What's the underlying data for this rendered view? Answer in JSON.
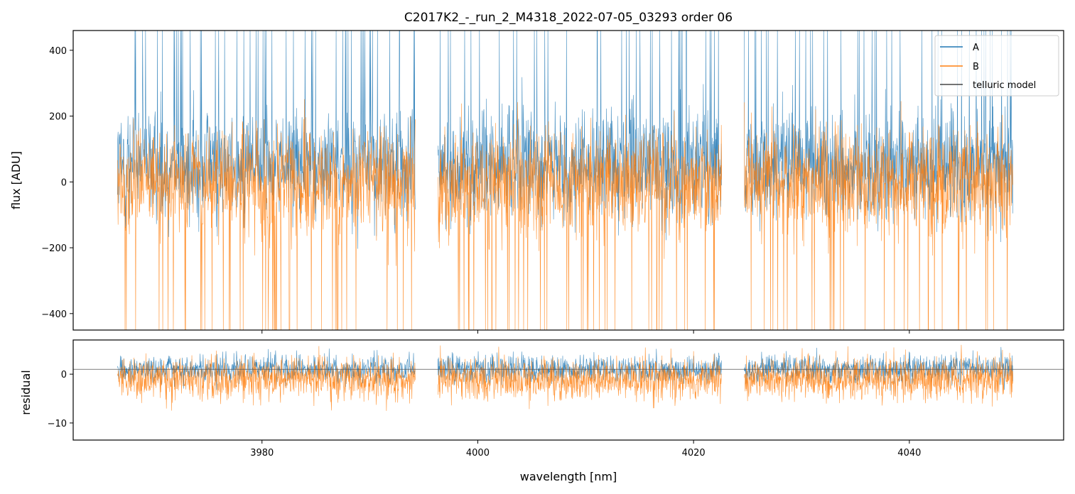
{
  "chart_data": [
    {
      "type": "line",
      "title": "C2017K2_-_run_2_M4318_2022-07-05_03293  order 06",
      "xlabel": "",
      "ylabel": "flux [ADU]",
      "xlim": [
        3962.5,
        4054.3
      ],
      "ylim": [
        -450,
        460
      ],
      "yticks": [
        -400,
        -200,
        0,
        200,
        400
      ],
      "ytick_labels": [
        "−400",
        "−200",
        "0",
        "200",
        "400"
      ],
      "xticks": [
        3980,
        4000,
        4020,
        4040
      ],
      "segments": [
        [
          3966.6,
          3994.2
        ],
        [
          3996.3,
          4022.6
        ],
        [
          4024.7,
          4049.6
        ]
      ],
      "series": [
        {
          "name": "A",
          "color": "#1f77b4",
          "center": 50,
          "spread": 150,
          "spike_max": 460
        },
        {
          "name": "B",
          "color": "#ff7f0e",
          "center": 0,
          "spread": 150,
          "spike_min": -450
        },
        {
          "name": "telluric model",
          "color": "#222222",
          "upper": {
            "x": [
              3966.6,
              3970,
              3975,
              3980,
              3985,
              3990,
              3994.2,
              3996.3,
              4000,
              4003,
              4008,
              4012,
              4016,
              4020,
              4022.6,
              4024.7,
              4030,
              4035,
              4040,
              4045,
              4049.6
            ],
            "y": [
              131,
              148,
              145,
              137,
              136,
              141,
              113,
              195,
              135,
              126,
              148,
              158,
              153,
              148,
              180,
              142,
              143,
              152,
              150,
              145,
              156
            ]
          },
          "lower": {
            "x": [
              3966.6,
              3970,
              3975,
              3980,
              3985,
              3990,
              3994.2,
              3996.3,
              4000,
              4005,
              4010,
              4015,
              4020,
              4022.6,
              4024.7,
              4030,
              4035,
              4040,
              4045,
              4049.6
            ],
            "y": [
              88,
              63,
              56,
              58,
              62,
              63,
              60,
              40,
              30,
              42,
              50,
              48,
              38,
              50,
              35,
              38,
              45,
              55,
              62,
              60
            ]
          }
        }
      ],
      "legend": {
        "position": "upper right",
        "entries": [
          "A",
          "B",
          "telluric model"
        ]
      }
    },
    {
      "type": "line",
      "title": "",
      "xlabel": "wavelength [nm]",
      "ylabel": "residual",
      "xlim": [
        3962.5,
        4054.3
      ],
      "ylim": [
        -13.5,
        7
      ],
      "yticks": [
        -10,
        0
      ],
      "ytick_labels": [
        "−10",
        "0"
      ],
      "xticks": [
        3980,
        4000,
        4020,
        4040
      ],
      "xtick_labels": [
        "3980",
        "4000",
        "4020",
        "4040"
      ],
      "hline_y": 1,
      "segments": [
        [
          3966.6,
          3994.2
        ],
        [
          3996.3,
          4022.6
        ],
        [
          4024.7,
          4049.6
        ]
      ],
      "series": [
        {
          "name": "A",
          "color": "#1f77b4",
          "center": 1,
          "spread": 2.5
        },
        {
          "name": "B",
          "color": "#ff7f0e",
          "center": -1,
          "spread": 4
        }
      ]
    }
  ]
}
